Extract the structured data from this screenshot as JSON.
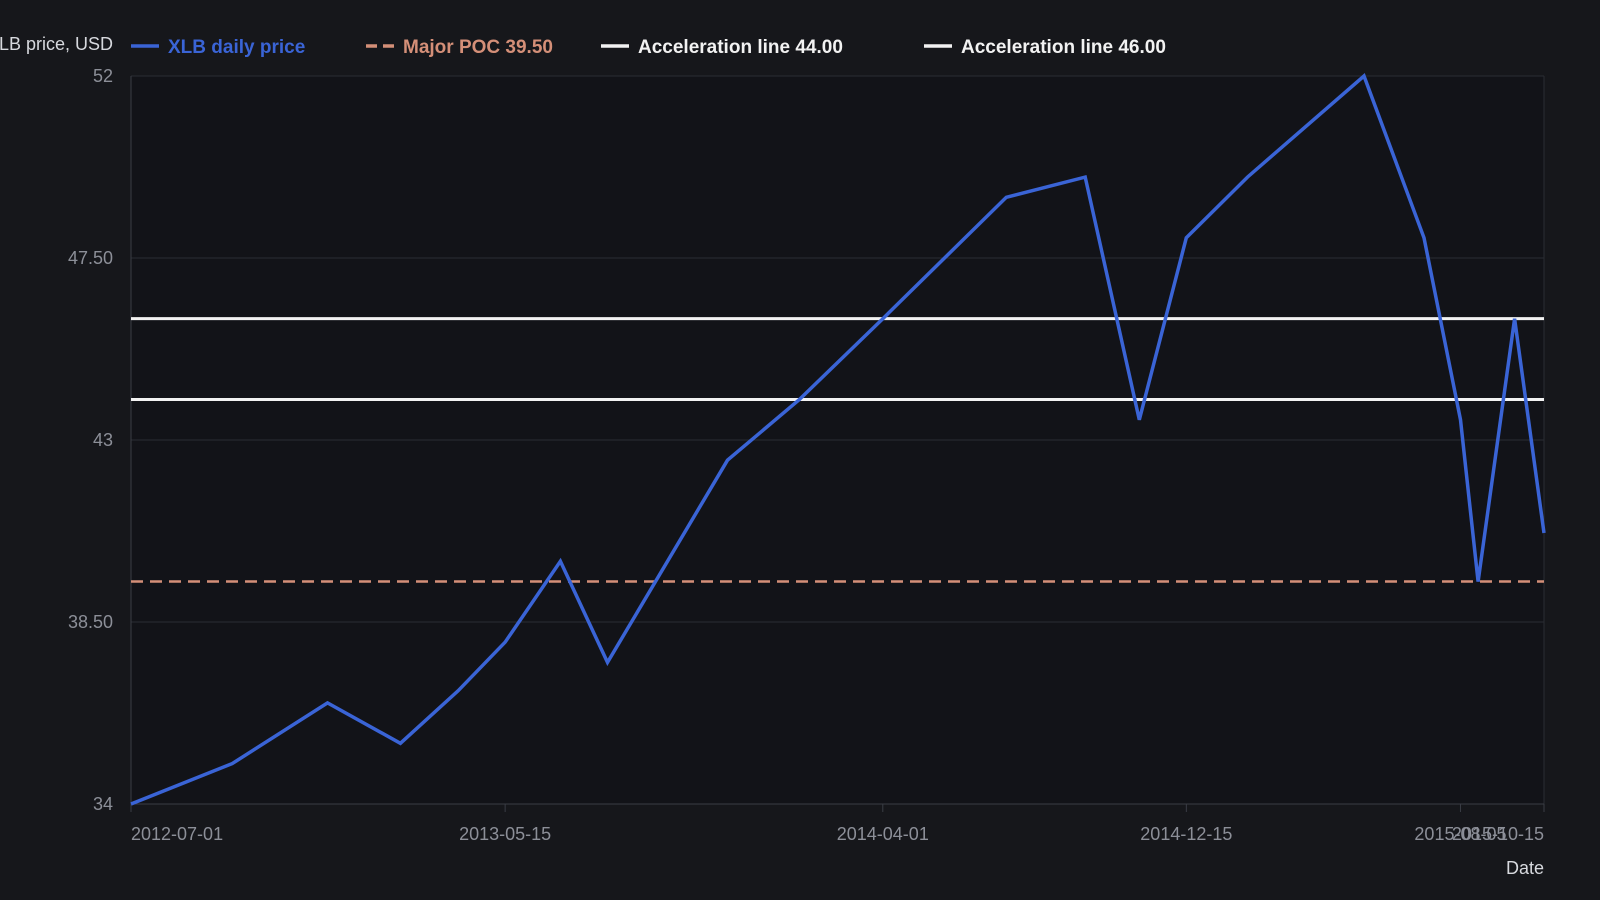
{
  "chart_data": {
    "type": "line",
    "ylabel": "XLB price, USD",
    "xlabel": "Date",
    "ylim": [
      34,
      52
    ],
    "xlim": [
      "2012-07-01",
      "2015-10-15"
    ],
    "y_ticks": [
      34,
      38.5,
      43,
      47.5,
      52
    ],
    "y_tick_labels": [
      "34",
      "38.50",
      "43",
      "47.50",
      "52"
    ],
    "x_ticks": [
      "2012-07-01",
      "2013-05-15",
      "2014-04-01",
      "2014-12-15",
      "2015-08-05",
      "2015-10-15"
    ],
    "x_tick_labels": [
      "2012-07-01",
      "2013-05-15",
      "2014-04-01",
      "2014-12-15",
      "2015-08-05",
      "2015-10-15"
    ],
    "grid": true,
    "legend_position": "top",
    "series": [
      {
        "name": "XLB daily price",
        "color": "#3a64d6",
        "style": "solid",
        "points": [
          [
            "2012-07-01",
            34.0
          ],
          [
            "2012-09-25",
            35.0
          ],
          [
            "2012-12-15",
            36.5
          ],
          [
            "2013-02-15",
            35.5
          ],
          [
            "2013-04-05",
            36.8
          ],
          [
            "2013-05-15",
            38.0
          ],
          [
            "2013-07-01",
            40.0
          ],
          [
            "2013-08-10",
            37.5
          ],
          [
            "2013-11-20",
            42.5
          ],
          [
            "2014-01-20",
            44.0
          ],
          [
            "2014-04-01",
            46.0
          ],
          [
            "2014-07-15",
            49.0
          ],
          [
            "2014-09-20",
            49.5
          ],
          [
            "2014-11-05",
            43.5
          ],
          [
            "2014-12-15",
            48.0
          ],
          [
            "2015-02-05",
            49.5
          ],
          [
            "2015-05-15",
            52.0
          ],
          [
            "2015-07-05",
            48.0
          ],
          [
            "2015-08-05",
            43.5
          ],
          [
            "2015-08-20",
            39.5
          ],
          [
            "2015-09-20",
            46.0
          ],
          [
            "2015-10-15",
            40.7
          ]
        ]
      },
      {
        "name": "Major POC 39.50",
        "color": "#d48f78",
        "style": "dashed",
        "level": 39.5
      },
      {
        "name": "Acceleration line 44.00",
        "color": "#f2f2f2",
        "style": "solid",
        "level": 44.0
      },
      {
        "name": "Acceleration line 46.00",
        "color": "#f2f2f2",
        "style": "solid",
        "level": 46.0
      }
    ]
  },
  "colors": {
    "background": "#16171b",
    "plot_background": "#121318",
    "grid": "#2a2c33",
    "axis": "#3a3d45",
    "tick_text": "#8c8f98",
    "title_text": "#d7d9de"
  }
}
